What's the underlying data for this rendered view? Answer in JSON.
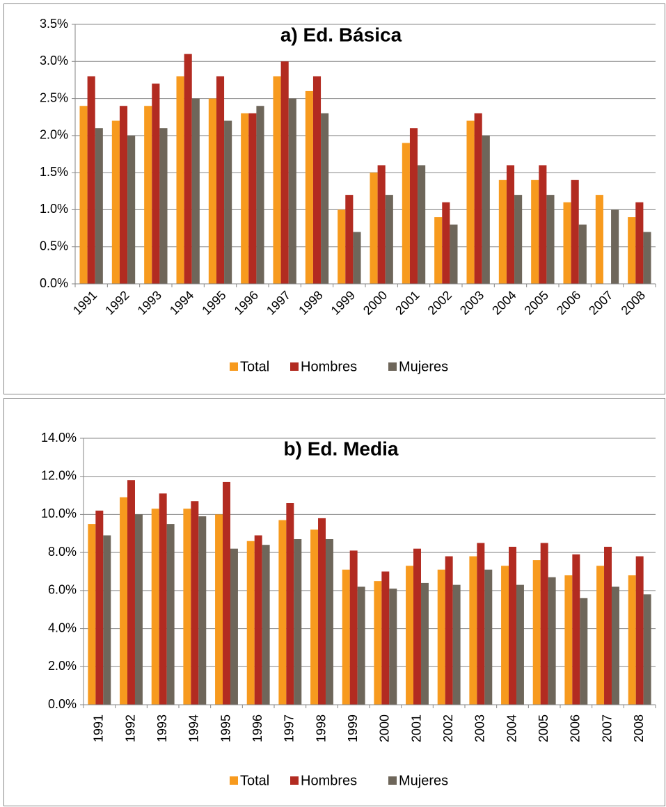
{
  "chart_data": [
    {
      "type": "bar",
      "title": "a) Ed. Básica",
      "categories": [
        "1991",
        "1992",
        "1993",
        "1994",
        "1995",
        "1996",
        "1997",
        "1998",
        "1999",
        "2000",
        "2001",
        "2002",
        "2003",
        "2004",
        "2005",
        "2006",
        "2007",
        "2008"
      ],
      "series": [
        {
          "name": "Total",
          "color": "#f79a1e",
          "values": [
            2.4,
            2.2,
            2.4,
            2.8,
            2.5,
            2.3,
            2.8,
            2.6,
            1.0,
            1.5,
            1.9,
            0.9,
            2.2,
            1.4,
            1.4,
            1.1,
            1.2,
            0.9
          ]
        },
        {
          "name": "Hombres",
          "color": "#b22b21",
          "values": [
            2.8,
            2.4,
            2.7,
            3.1,
            2.8,
            2.3,
            3.0,
            2.8,
            1.2,
            1.6,
            2.1,
            1.1,
            2.3,
            1.6,
            1.6,
            1.4,
            null,
            1.1
          ]
        },
        {
          "name": "Mujeres",
          "color": "#6e665a",
          "values": [
            2.1,
            2.0,
            2.1,
            2.5,
            2.2,
            2.4,
            2.5,
            2.3,
            0.7,
            1.2,
            1.6,
            0.8,
            2.0,
            1.2,
            1.2,
            0.8,
            1.0,
            0.7
          ]
        }
      ],
      "ylim": [
        0,
        3.5
      ],
      "yticks": [
        {
          "value": 0,
          "label": "0.0%"
        },
        {
          "value": 0.5,
          "label": "0.5%"
        },
        {
          "value": 1,
          "label": "1.0%"
        },
        {
          "value": 1.5,
          "label": "1.5%"
        },
        {
          "value": 2,
          "label": "2.0%"
        },
        {
          "value": 2.5,
          "label": "2.5%"
        },
        {
          "value": 3,
          "label": "3.0%"
        },
        {
          "value": 3.5,
          "label": "3.5%"
        }
      ],
      "grid": true,
      "legend": "bottom"
    },
    {
      "type": "bar",
      "title": "b) Ed. Media",
      "categories": [
        "1991",
        "1992",
        "1993",
        "1994",
        "1995",
        "1996",
        "1997",
        "1998",
        "1999",
        "2000",
        "2001",
        "2002",
        "2003",
        "2004",
        "2005",
        "2006",
        "2007",
        "2008"
      ],
      "series": [
        {
          "name": "Total",
          "color": "#f79a1e",
          "values": [
            9.5,
            10.9,
            10.3,
            10.3,
            10.0,
            8.6,
            9.7,
            9.2,
            7.1,
            6.5,
            7.3,
            7.1,
            7.8,
            7.3,
            7.6,
            6.8,
            7.3,
            6.8
          ]
        },
        {
          "name": "Hombres",
          "color": "#b22b21",
          "values": [
            10.2,
            11.8,
            11.1,
            10.7,
            11.7,
            8.9,
            10.6,
            9.8,
            8.1,
            7.0,
            8.2,
            7.8,
            8.5,
            8.3,
            8.5,
            7.9,
            8.3,
            7.8
          ]
        },
        {
          "name": "Mujeres",
          "color": "#6e665a",
          "values": [
            8.9,
            10.0,
            9.5,
            9.9,
            8.2,
            8.4,
            8.7,
            8.7,
            6.2,
            6.1,
            6.4,
            6.3,
            7.1,
            6.3,
            6.7,
            5.6,
            6.2,
            5.8
          ]
        }
      ],
      "ylim": [
        0,
        14
      ],
      "yticks": [
        {
          "value": 0,
          "label": "0.0%"
        },
        {
          "value": 2,
          "label": "2.0%"
        },
        {
          "value": 4,
          "label": "4.0%"
        },
        {
          "value": 6,
          "label": "6.0%"
        },
        {
          "value": 8,
          "label": "8.0%"
        },
        {
          "value": 10,
          "label": "10.0%"
        },
        {
          "value": 12,
          "label": "12.0%"
        },
        {
          "value": 14,
          "label": "14.0%"
        }
      ],
      "grid": true,
      "legend": "bottom"
    }
  ]
}
